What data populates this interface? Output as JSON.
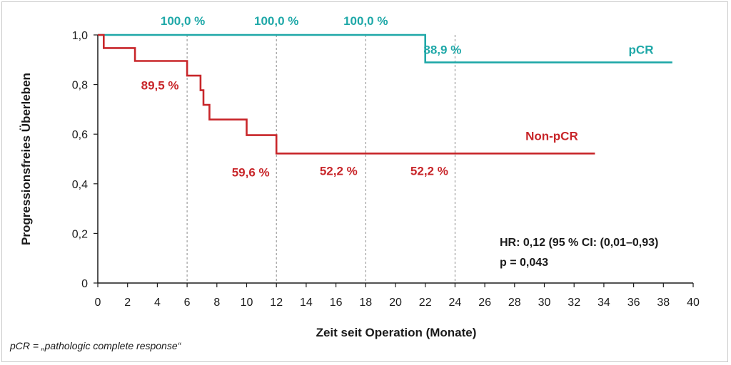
{
  "chart_data": {
    "type": "line",
    "xlabel": "Zeit seit Operation (Monate)",
    "ylabel": "Progressionsfreies Überleben",
    "xlim": [
      0,
      40
    ],
    "ylim": [
      0,
      1.0
    ],
    "xticks": [
      0,
      2,
      4,
      6,
      8,
      10,
      12,
      14,
      16,
      18,
      20,
      22,
      24,
      26,
      28,
      30,
      32,
      34,
      36,
      38,
      40
    ],
    "yticks": [
      0,
      0.2,
      0.4,
      0.6,
      0.8,
      1.0
    ],
    "ytick_labels": [
      "0",
      "0,2",
      "0,4",
      "0,6",
      "0,8",
      "1,0"
    ],
    "reference_lines_x": [
      6,
      12,
      18,
      24
    ],
    "colors": {
      "pcr": "#1fa8a8",
      "non_pcr": "#c8262a"
    },
    "series": [
      {
        "name": "pCR",
        "step": true,
        "x": [
          0,
          22,
          22,
          38.6
        ],
        "y": [
          1.0,
          1.0,
          0.889,
          0.889
        ]
      },
      {
        "name": "Non-pCR",
        "step": true,
        "x": [
          0,
          0.4,
          0.4,
          2.5,
          2.5,
          6,
          6,
          6.9,
          6.9,
          7.1,
          7.1,
          7.5,
          7.5,
          10,
          10,
          12,
          12,
          33.4
        ],
        "y": [
          1.0,
          1.0,
          0.947,
          0.947,
          0.895,
          0.895,
          0.836,
          0.836,
          0.777,
          0.777,
          0.718,
          0.718,
          0.659,
          0.659,
          0.596,
          0.596,
          0.522,
          0.522
        ]
      }
    ],
    "annotations": [
      {
        "text": "100,0 %",
        "series": "pCR",
        "x": 6,
        "y": 1.0
      },
      {
        "text": "100,0 %",
        "series": "pCR",
        "x": 12,
        "y": 1.0
      },
      {
        "text": "100,0 %",
        "series": "pCR",
        "x": 18,
        "y": 1.0
      },
      {
        "text": "88,9 %",
        "series": "pCR",
        "x": 24,
        "y": 0.889
      },
      {
        "text": "pCR",
        "series": "pCR",
        "x": 36.5,
        "y": 0.889
      },
      {
        "text": "89,5 %",
        "series": "Non-pCR",
        "x": 6,
        "y": 0.895
      },
      {
        "text": "59,6 %",
        "series": "Non-pCR",
        "x": 12,
        "y": 0.596
      },
      {
        "text": "52,2 %",
        "series": "Non-pCR",
        "x": 18,
        "y": 0.522
      },
      {
        "text": "52,2 %",
        "series": "Non-pCR",
        "x": 24,
        "y": 0.522
      },
      {
        "text": "Non-pCR",
        "series": "Non-pCR",
        "x": 30.5,
        "y": 0.596
      }
    ],
    "stats": {
      "hr": "HR: 0,12 (95 % CI: (0,01–0,93)",
      "p": "p = 0,043"
    }
  },
  "footnote": "pCR = „pathologic complete response“"
}
